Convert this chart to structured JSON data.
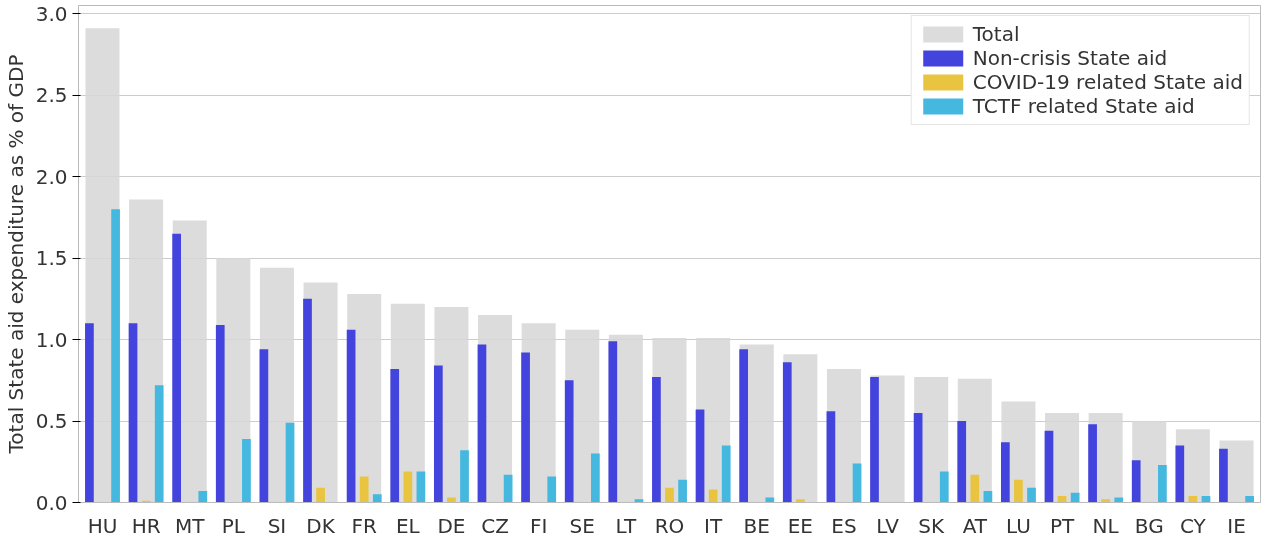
{
  "chart_data": {
    "type": "bar",
    "ylabel": "Total State aid expenditure as % of GDP",
    "categories": [
      "HU",
      "HR",
      "MT",
      "PL",
      "SI",
      "DK",
      "FR",
      "EL",
      "DE",
      "CZ",
      "FI",
      "SE",
      "LT",
      "RO",
      "IT",
      "BE",
      "EE",
      "ES",
      "LV",
      "SK",
      "AT",
      "LU",
      "PT",
      "NL",
      "BG",
      "CY",
      "IE"
    ],
    "series": [
      {
        "name": "Total",
        "color": "#d6d6d6",
        "values": [
          2.91,
          1.86,
          1.73,
          1.5,
          1.44,
          1.35,
          1.28,
          1.22,
          1.2,
          1.15,
          1.1,
          1.06,
          1.03,
          1.01,
          1.01,
          0.97,
          0.91,
          0.82,
          0.78,
          0.77,
          0.76,
          0.62,
          0.55,
          0.55,
          0.5,
          0.45,
          0.38
        ]
      },
      {
        "name": "Non-crisis State aid",
        "color": "#4343dd",
        "values": [
          1.1,
          1.1,
          1.65,
          1.09,
          0.94,
          1.25,
          1.06,
          0.82,
          0.84,
          0.97,
          0.92,
          0.75,
          0.99,
          0.77,
          0.57,
          0.94,
          0.86,
          0.56,
          0.77,
          0.55,
          0.5,
          0.37,
          0.44,
          0.48,
          0.26,
          0.35,
          0.33
        ]
      },
      {
        "name": "COVID-19 related State aid",
        "color": "#e8c440",
        "values": [
          0,
          0.01,
          0,
          0,
          0,
          0.09,
          0.16,
          0.19,
          0.03,
          0,
          0,
          0,
          0,
          0.09,
          0.08,
          0,
          0.02,
          0,
          0,
          0,
          0.17,
          0.14,
          0.04,
          0.02,
          0,
          0.04,
          0
        ]
      },
      {
        "name": "TCTF related State aid",
        "color": "#45b8e0",
        "values": [
          1.8,
          0.72,
          0.07,
          0.39,
          0.49,
          0,
          0.05,
          0.19,
          0.32,
          0.17,
          0.16,
          0.3,
          0.02,
          0.14,
          0.35,
          0.03,
          0,
          0.24,
          0,
          0.19,
          0.07,
          0.09,
          0.06,
          0.03,
          0.23,
          0.04,
          0.04
        ]
      }
    ],
    "ylim": [
      0,
      3.05
    ],
    "yticks": [
      {
        "value": 0,
        "label": "0.0"
      },
      0.5,
      {
        "value": 1,
        "label": "1.0"
      },
      1.5,
      {
        "value": 2,
        "label": "2.0"
      },
      2.5,
      {
        "value": 3,
        "label": "3.0"
      }
    ],
    "grid": "y",
    "legend": "top right"
  }
}
